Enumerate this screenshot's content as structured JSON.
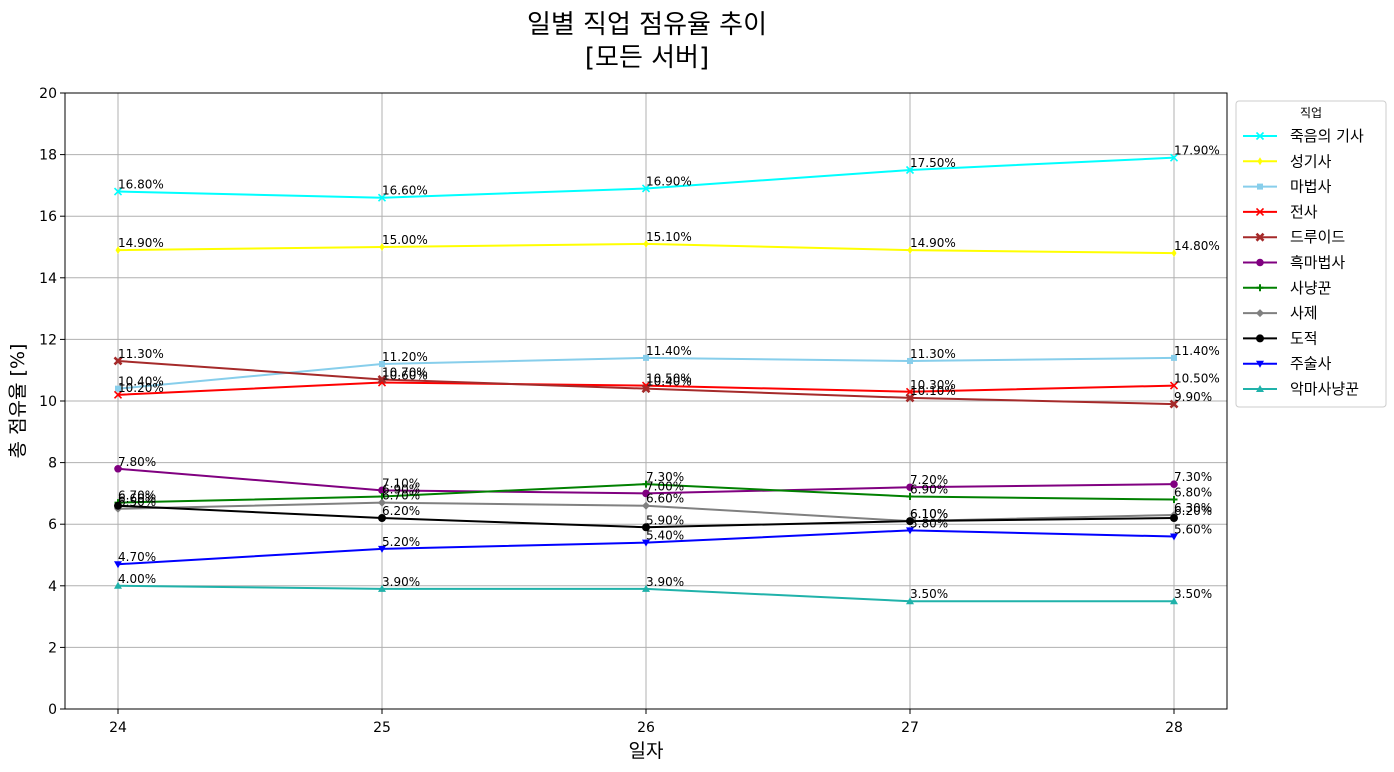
{
  "chart_data": {
    "type": "line",
    "title_line1": "일별 직업 점유율 추이",
    "title_line2": "[모든 서버]",
    "xlabel": "일자",
    "ylabel": "총 점유율 [%]",
    "x": [
      24,
      25,
      26,
      27,
      28
    ],
    "x_tick_labels": [
      "24",
      "25",
      "26",
      "27",
      "28"
    ],
    "ylim": [
      0,
      20
    ],
    "y_ticks": [
      0,
      2,
      4,
      6,
      8,
      10,
      12,
      14,
      16,
      18,
      20
    ],
    "y_tick_labels": [
      "0",
      "2",
      "4",
      "6",
      "8",
      "10",
      "12",
      "14",
      "16",
      "18",
      "20"
    ],
    "grid": true,
    "legend_title": "직업",
    "legend_position": "outside-right-top",
    "series": [
      {
        "name": "죽음의 기사",
        "color": "#00ffff",
        "marker": "x",
        "values": [
          16.8,
          16.6,
          16.9,
          17.5,
          17.9
        ],
        "labels": [
          "16.80%",
          "16.60%",
          "16.90%",
          "17.50%",
          "17.90%"
        ]
      },
      {
        "name": "성기사",
        "color": "#ffff00",
        "marker": "diamond-thin",
        "values": [
          14.9,
          15.0,
          15.1,
          14.9,
          14.8
        ],
        "labels": [
          "14.90%",
          "15.00%",
          "15.10%",
          "14.90%",
          "14.80%"
        ]
      },
      {
        "name": "마법사",
        "color": "#87ceeb",
        "marker": "square",
        "values": [
          10.4,
          11.2,
          11.4,
          11.3,
          11.4
        ],
        "labels": [
          "10.40%",
          "11.20%",
          "11.40%",
          "11.30%",
          "11.40%"
        ]
      },
      {
        "name": "전사",
        "color": "#ff0000",
        "marker": "x",
        "values": [
          10.2,
          10.6,
          10.5,
          10.3,
          10.5
        ],
        "labels": [
          "10.20%",
          "10.60%",
          "10.50%",
          "10.30%",
          "10.50%"
        ]
      },
      {
        "name": "드루이드",
        "color": "#a52a2a",
        "marker": "x-bold",
        "values": [
          11.3,
          10.7,
          10.4,
          10.1,
          9.9
        ],
        "labels": [
          "11.30%",
          "10.70%",
          "10.40%",
          "10.10%",
          "9.90%"
        ]
      },
      {
        "name": "흑마법사",
        "color": "#800080",
        "marker": "octagon",
        "values": [
          7.8,
          7.1,
          7.0,
          7.2,
          7.3
        ],
        "labels": [
          "7.80%",
          "7.10%",
          "7.00%",
          "7.20%",
          "7.30%"
        ]
      },
      {
        "name": "사냥꾼",
        "color": "#008000",
        "marker": "plus",
        "values": [
          6.7,
          6.9,
          7.3,
          6.9,
          6.8
        ],
        "labels": [
          "6.70%",
          "6.90%",
          "7.30%",
          "6.90%",
          "6.80%"
        ]
      },
      {
        "name": "사제",
        "color": "#808080",
        "marker": "diamond",
        "values": [
          6.5,
          6.7,
          6.6,
          6.1,
          6.3
        ],
        "labels": [
          "6.50%",
          "6.70%",
          "6.60%",
          "6.10%",
          "6.30%"
        ]
      },
      {
        "name": "도적",
        "color": "#000000",
        "marker": "circle",
        "values": [
          6.6,
          6.2,
          5.9,
          6.1,
          6.2
        ],
        "labels": [
          "6.60%",
          "6.20%",
          "5.90%",
          "6.10%",
          "6.20%"
        ]
      },
      {
        "name": "주술사",
        "color": "#0000ff",
        "marker": "triangle-down",
        "values": [
          4.7,
          5.2,
          5.4,
          5.8,
          5.6
        ],
        "labels": [
          "4.70%",
          "5.20%",
          "5.40%",
          "5.80%",
          "5.60%"
        ]
      },
      {
        "name": "악마사냥꾼",
        "color": "#20b2aa",
        "marker": "triangle-up",
        "values": [
          4.0,
          3.9,
          3.9,
          3.5,
          3.5
        ],
        "labels": [
          "4.00%",
          "3.90%",
          "3.90%",
          "3.50%",
          "3.50%"
        ]
      }
    ]
  }
}
